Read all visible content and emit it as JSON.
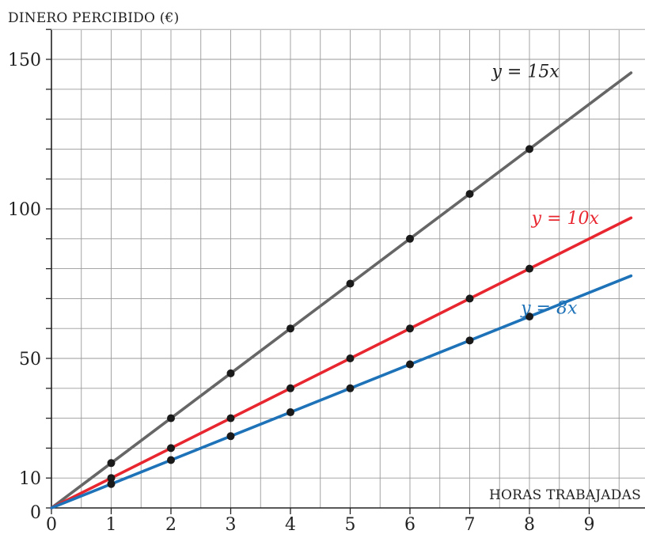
{
  "chart_data": {
    "type": "line",
    "ylabel": "DINERO PERCIBIDO (€)",
    "xlabel": "HORAS TRABAJADAS",
    "xlim": [
      0,
      9.7
    ],
    "ylim": [
      0,
      160
    ],
    "x_ticks": [
      "0",
      "1",
      "2",
      "3",
      "4",
      "5",
      "6",
      "7",
      "8",
      "9"
    ],
    "y_ticks": [
      "0",
      "10",
      "50",
      "100",
      "150"
    ],
    "y_tick_values": [
      0,
      10,
      50,
      100,
      150
    ],
    "grid": true,
    "series": [
      {
        "name": "y = 15x",
        "slope": 15,
        "color": "#666666",
        "points": [
          [
            1,
            15
          ],
          [
            2,
            30
          ],
          [
            3,
            45
          ],
          [
            4,
            60
          ],
          [
            5,
            75
          ],
          [
            6,
            90
          ],
          [
            7,
            105
          ],
          [
            8,
            120
          ]
        ]
      },
      {
        "name": "y = 10x",
        "slope": 10,
        "color": "#e8262f",
        "points": [
          [
            1,
            10
          ],
          [
            2,
            20
          ],
          [
            3,
            30
          ],
          [
            4,
            40
          ],
          [
            5,
            50
          ],
          [
            6,
            60
          ],
          [
            7,
            70
          ],
          [
            8,
            80
          ]
        ]
      },
      {
        "name": "y = 8x",
        "slope": 8,
        "color": "#1d72b8",
        "points": [
          [
            1,
            8
          ],
          [
            2,
            16
          ],
          [
            3,
            24
          ],
          [
            4,
            32
          ],
          [
            5,
            40
          ],
          [
            6,
            48
          ],
          [
            7,
            56
          ],
          [
            8,
            64
          ]
        ]
      }
    ]
  }
}
